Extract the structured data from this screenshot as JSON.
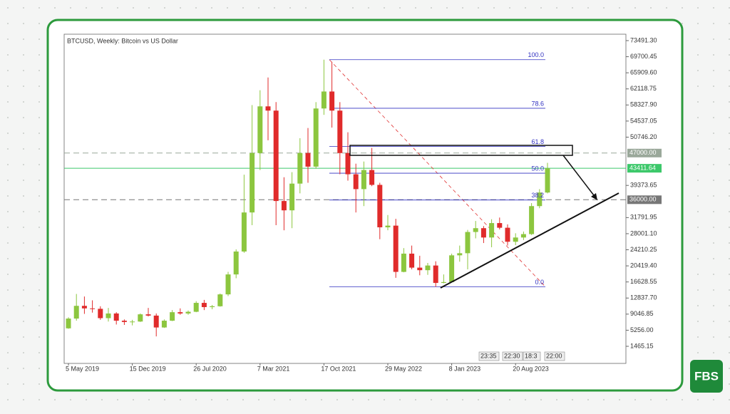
{
  "chart_data": {
    "type": "candlestick",
    "title": "BTCUSD, Weekly:  Bitcoin vs US Dollar",
    "categories": [
      "5 May 2019",
      null,
      null,
      null,
      null,
      null,
      null,
      null,
      "15 Dec 2019",
      null,
      null,
      null,
      null,
      null,
      null,
      null,
      "26 Jul 2020",
      null,
      null,
      null,
      null,
      null,
      null,
      null,
      "7 Mar 2021",
      null,
      null,
      null,
      null,
      null,
      null,
      null,
      "17 Oct 2021",
      null,
      null,
      null,
      null,
      null,
      null,
      null,
      "29 May 2022",
      null,
      null,
      null,
      null,
      null,
      null,
      null,
      "8 Jan 2023",
      null,
      null,
      null,
      null,
      null,
      null,
      null,
      "20 Aug 2023",
      null,
      null,
      null,
      null
    ],
    "open": [
      5700,
      8000,
      11000,
      10400,
      10300,
      8100,
      9200,
      7500,
      7200,
      7300,
      9000,
      8700,
      5900,
      7500,
      9500,
      9200,
      9600,
      11700,
      10700,
      10900,
      13700,
      18400,
      23800,
      33000,
      47000,
      58000,
      57000,
      35700,
      33500,
      39800,
      47000,
      43800,
      57500,
      61500,
      57000,
      47000,
      42000,
      38500,
      43000,
      39500,
      29500,
      29900,
      19000,
      23300,
      20000,
      19400,
      20500,
      16400,
      16600,
      22900,
      23400,
      28400,
      29300,
      27100,
      30500,
      29400,
      26100,
      27100,
      27900,
      34500,
      37700
    ],
    "high": [
      8300,
      13800,
      13200,
      12300,
      10900,
      10500,
      9500,
      7800,
      7700,
      9200,
      10500,
      9200,
      7800,
      10000,
      10400,
      9900,
      12100,
      12400,
      11200,
      13900,
      19000,
      24300,
      41900,
      58300,
      61800,
      64800,
      59000,
      41300,
      42500,
      50500,
      52900,
      59000,
      69000,
      68500,
      59000,
      51900,
      44500,
      45000,
      48200,
      40000,
      32400,
      31500,
      24600,
      25200,
      22800,
      21100,
      21500,
      18400,
      23300,
      25200,
      28900,
      31000,
      29800,
      31400,
      31800,
      30200,
      28100,
      28500,
      35200,
      38500,
      44700
    ],
    "low": [
      5600,
      7500,
      9100,
      9400,
      7700,
      7300,
      6600,
      6500,
      6400,
      7200,
      8500,
      3800,
      5800,
      7400,
      8900,
      8900,
      9500,
      10000,
      10200,
      10800,
      13300,
      17500,
      23500,
      30000,
      43000,
      50000,
      30000,
      28800,
      29300,
      37500,
      40000,
      43300,
      56000,
      53000,
      42000,
      40500,
      33000,
      34500,
      39200,
      26700,
      28800,
      17600,
      18900,
      19600,
      18200,
      18300,
      15500,
      16300,
      16600,
      21400,
      19600,
      26900,
      25800,
      24800,
      29000,
      25200,
      25300,
      26500,
      27700,
      34000,
      37500
    ],
    "close": [
      8000,
      11000,
      10400,
      10300,
      8100,
      9200,
      7500,
      7200,
      7300,
      9000,
      8700,
      5900,
      7500,
      9500,
      9200,
      9600,
      11700,
      10700,
      10900,
      13700,
      18400,
      23800,
      33000,
      47000,
      58000,
      57000,
      35700,
      33500,
      39800,
      47000,
      43800,
      57500,
      61500,
      57000,
      47000,
      42000,
      38500,
      43000,
      39500,
      29500,
      29900,
      19000,
      23300,
      20000,
      19400,
      20500,
      16400,
      16600,
      22900,
      23400,
      28400,
      29300,
      27100,
      30500,
      29400,
      26100,
      27100,
      27900,
      34500,
      37700,
      43411.64
    ],
    "up_color": "#8cc63f",
    "down_color": "#e02b2b",
    "ylim": [
      -2565,
      75002
    ],
    "yticks": [
      {
        "value": 73491.3,
        "label": "73491.30"
      },
      {
        "value": 69700.45,
        "label": "69700.45"
      },
      {
        "value": 65909.6,
        "label": "65909.60"
      },
      {
        "value": 62118.75,
        "label": "62118.75"
      },
      {
        "value": 58327.9,
        "label": "58327.90"
      },
      {
        "value": 54537.05,
        "label": "54537.05"
      },
      {
        "value": 50746.2,
        "label": "50746.20"
      },
      {
        "value": 39373.65,
        "label": "39373.65"
      },
      {
        "value": 31791.95,
        "label": "31791.95"
      },
      {
        "value": 28001.1,
        "label": "28001.10"
      },
      {
        "value": 24210.25,
        "label": "24210.25"
      },
      {
        "value": 20419.4,
        "label": "20419.40"
      },
      {
        "value": 16628.55,
        "label": "16628.55"
      },
      {
        "value": 12837.7,
        "label": "12837.70"
      },
      {
        "value": 9046.85,
        "label": "9046.85"
      },
      {
        "value": 5256,
        "label": "5256.00"
      },
      {
        "value": 1465.15,
        "label": "1465.15"
      }
    ],
    "price_lines": [
      {
        "value": 47000,
        "label": "47000.00",
        "color": "#9aa89a",
        "dashed": true
      },
      {
        "value": 43411.64,
        "label": "43411.64",
        "color": "#3cc86a",
        "dashed": false
      },
      {
        "value": 36000,
        "label": "36000.00",
        "color": "#777777",
        "dashed": true
      }
    ],
    "fibonacci": {
      "high": 69000,
      "low": 15500,
      "color": "#3030c0",
      "levels": [
        {
          "value": 100,
          "label": "100.0"
        },
        {
          "value": 78.6,
          "label": "78.6"
        },
        {
          "value": 61.8,
          "label": "61.8"
        },
        {
          "value": 50,
          "label": "50.0"
        },
        {
          "value": 38.2,
          "label": "38.2"
        },
        {
          "value": 0,
          "label": "0.0"
        }
      ]
    },
    "time_labels": [
      "23:35",
      "22:30",
      "18:3",
      "22:00"
    ]
  },
  "logo": "FBS"
}
